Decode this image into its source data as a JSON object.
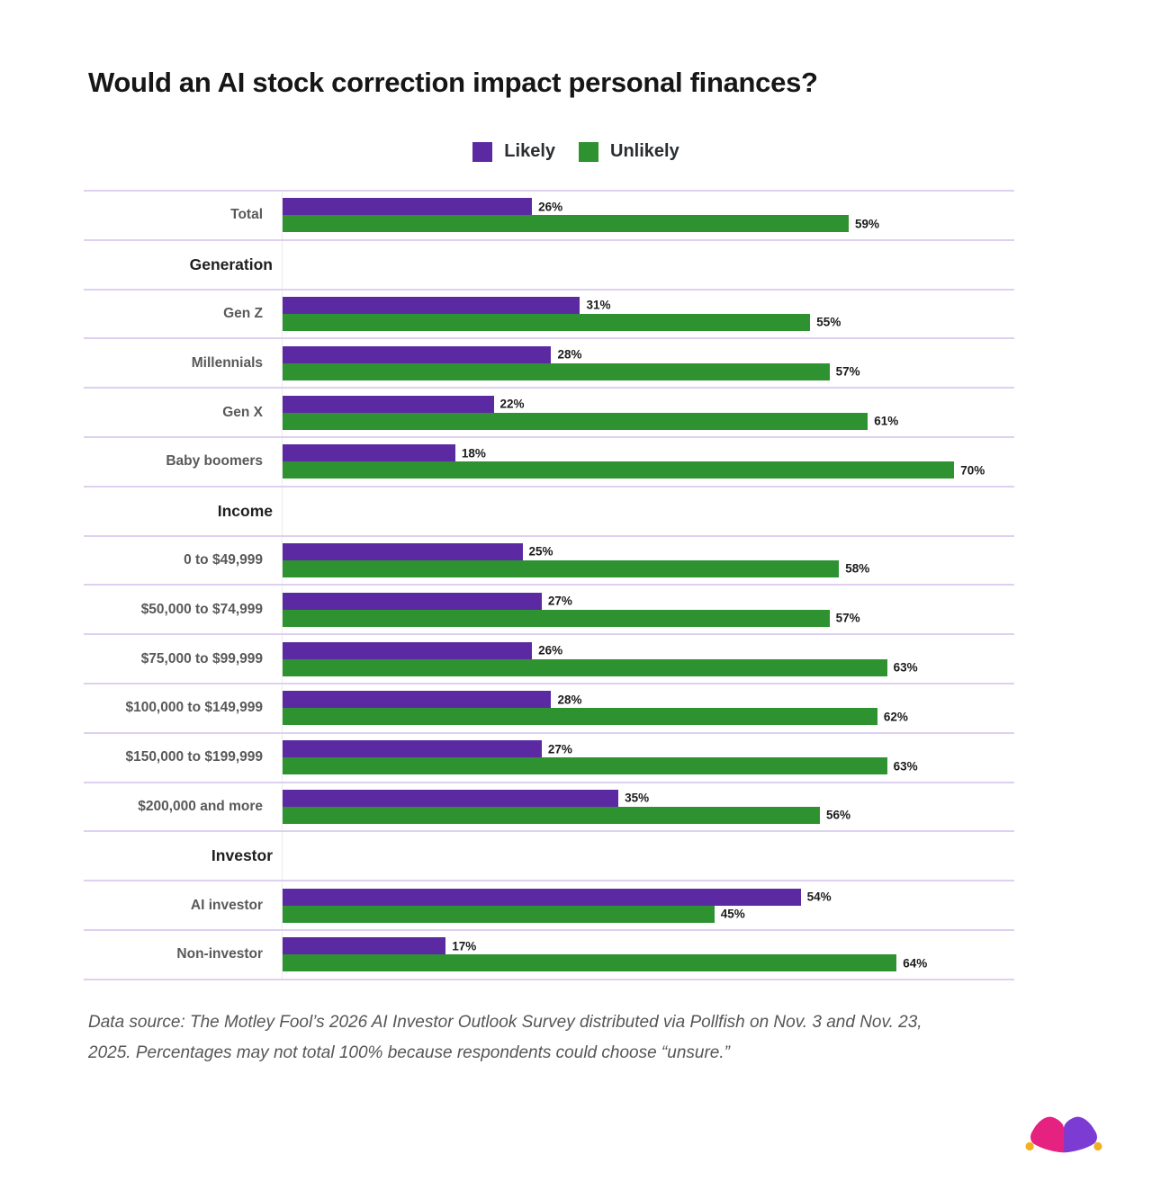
{
  "title": "Would an AI stock correction impact personal finances?",
  "legend": [
    {
      "label": "Likely",
      "color": "#5b2aa3"
    },
    {
      "label": "Unlikely",
      "color": "#2e9231"
    }
  ],
  "chart_data": {
    "type": "bar",
    "orientation": "horizontal",
    "unit": "%",
    "xlim": [
      0,
      76
    ],
    "grid": "row-separators",
    "legend_position": "top-center",
    "series_names": [
      "Likely",
      "Unlikely"
    ],
    "rows": [
      {
        "type": "data",
        "label": "Total",
        "likely": 26,
        "unlikely": 59
      },
      {
        "type": "section",
        "label": "Generation"
      },
      {
        "type": "data",
        "label": "Gen Z",
        "likely": 31,
        "unlikely": 55
      },
      {
        "type": "data",
        "label": "Millennials",
        "likely": 28,
        "unlikely": 57
      },
      {
        "type": "data",
        "label": "Gen X",
        "likely": 22,
        "unlikely": 61
      },
      {
        "type": "data",
        "label": "Baby boomers",
        "likely": 18,
        "unlikely": 70
      },
      {
        "type": "section",
        "label": "Income"
      },
      {
        "type": "data",
        "label": "0 to $49,999",
        "likely": 25,
        "unlikely": 58
      },
      {
        "type": "data",
        "label": "$50,000 to $74,999",
        "likely": 27,
        "unlikely": 57
      },
      {
        "type": "data",
        "label": "$75,000 to $99,999",
        "likely": 26,
        "unlikely": 63
      },
      {
        "type": "data",
        "label": "$100,000 to $149,999",
        "likely": 28,
        "unlikely": 62
      },
      {
        "type": "data",
        "label": "$150,000 to $199,999",
        "likely": 27,
        "unlikely": 63
      },
      {
        "type": "data",
        "label": "$200,000 and more",
        "likely": 35,
        "unlikely": 56
      },
      {
        "type": "section",
        "label": "Investor"
      },
      {
        "type": "data",
        "label": "AI investor",
        "likely": 54,
        "unlikely": 45
      },
      {
        "type": "data",
        "label": "Non-investor",
        "likely": 17,
        "unlikely": 64
      }
    ]
  },
  "footnote": {
    "lines": [
      "Data source: The Motley Fool’s 2026 AI Investor Outlook Survey distributed via Pollfish on Nov. 3 and Nov. 23,",
      "2025. Percentages may not total 100% because respondents could choose “unsure.”"
    ]
  },
  "logo": {
    "name": "motley-fool-jester-hat",
    "colors": {
      "left_lobe": "#e52280",
      "right_lobe": "#7c3bd2",
      "balls": "#f2af1f"
    }
  }
}
